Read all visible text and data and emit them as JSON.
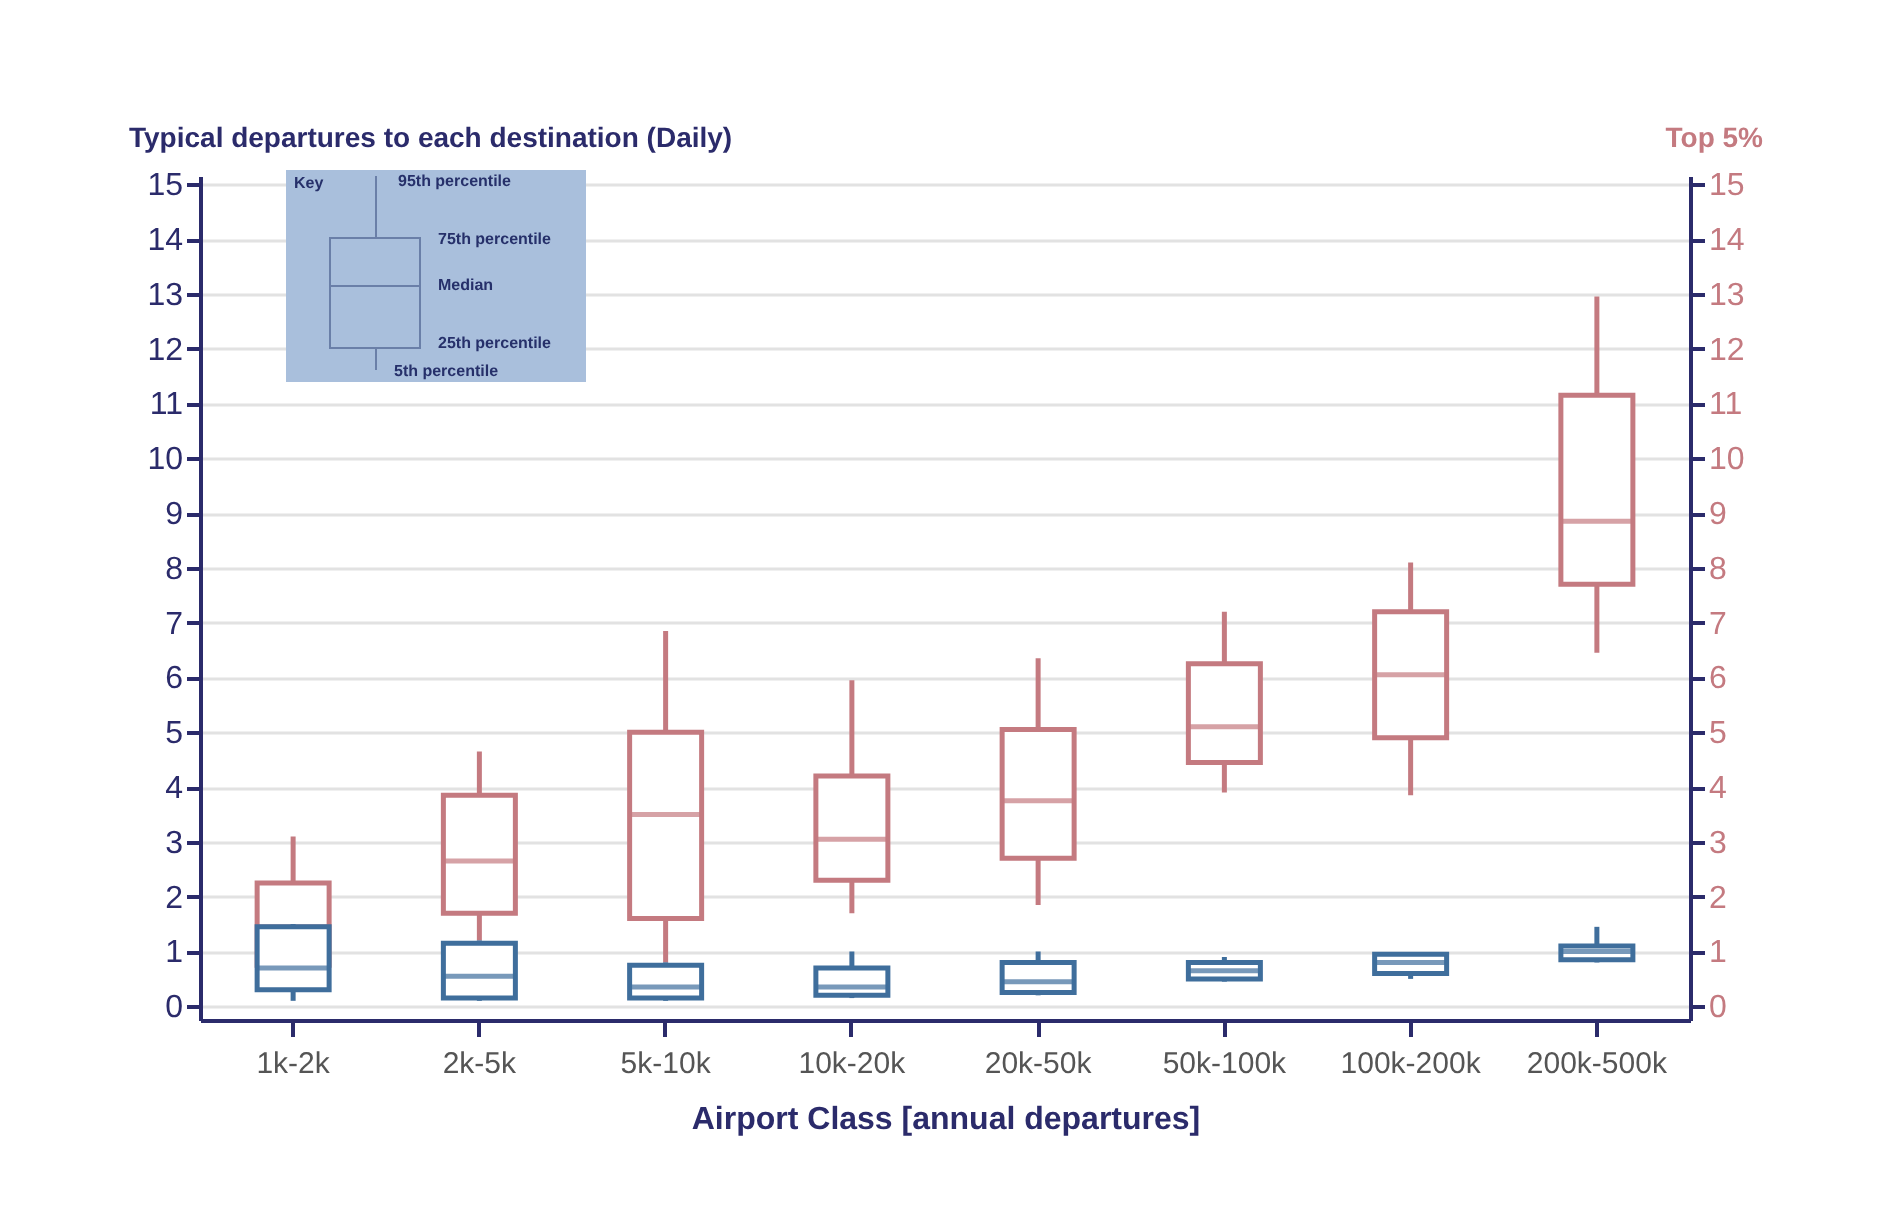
{
  "chart_data": {
    "type": "box",
    "ylabel": "Typical departures to each destination (Daily)",
    "y2label": "Top 5%",
    "xlabel": "Airport Class [annual departures]",
    "categories": [
      "1k-2k",
      "2k-5k",
      "5k-10k",
      "10k-20k",
      "20k-50k",
      "50k-100k",
      "100k-200k",
      "200k-500k"
    ],
    "ylim": [
      -0.25,
      15.15
    ],
    "yticks": [
      0,
      1,
      2,
      3,
      4,
      5,
      6,
      7,
      8,
      9,
      10,
      11,
      12,
      13,
      14,
      15
    ],
    "y2lim": [
      -0.25,
      15.15
    ],
    "y2ticks": [
      0,
      1,
      2,
      3,
      4,
      5,
      6,
      7,
      8,
      9,
      10,
      11,
      12,
      13,
      14,
      15
    ],
    "grid": "y",
    "annotations": [
      "Key",
      "95th percentile",
      "75th percentile",
      "Median",
      "25th percentile",
      "5th percentile"
    ],
    "series": [
      {
        "color": "#c47a80",
        "axis": "y2",
        "boxes": [
          {
            "low": 0.5,
            "q1": 0.75,
            "median": 1.45,
            "q3": 2.25,
            "high": 3.1
          },
          {
            "low": 1.2,
            "q1": 1.7,
            "median": 2.65,
            "q3": 3.85,
            "high": 4.65
          },
          {
            "low": 0.8,
            "q1": 1.6,
            "median": 3.5,
            "q3": 5.0,
            "high": 6.85
          },
          {
            "low": 1.7,
            "q1": 2.3,
            "median": 3.05,
            "q3": 4.2,
            "high": 5.95
          },
          {
            "low": 1.85,
            "q1": 2.7,
            "median": 3.75,
            "q3": 5.05,
            "high": 6.35
          },
          {
            "low": 3.9,
            "q1": 4.45,
            "median": 5.1,
            "q3": 6.25,
            "high": 7.2
          },
          {
            "low": 3.85,
            "q1": 4.9,
            "median": 6.05,
            "q3": 7.2,
            "high": 8.1
          },
          {
            "low": 6.45,
            "q1": 7.7,
            "median": 8.85,
            "q3": 11.15,
            "high": 12.95
          }
        ]
      },
      {
        "color": "#3f6e9c",
        "axis": "y",
        "boxes": [
          {
            "low": 0.1,
            "q1": 0.3,
            "median": 0.7,
            "q3": 1.45,
            "high": 1.5
          },
          {
            "low": 0.1,
            "q1": 0.15,
            "median": 0.55,
            "q3": 1.15,
            "high": 1.2
          },
          {
            "low": 0.1,
            "q1": 0.15,
            "median": 0.35,
            "q3": 0.75,
            "high": 0.8
          },
          {
            "low": 0.15,
            "q1": 0.2,
            "median": 0.35,
            "q3": 0.7,
            "high": 1.0
          },
          {
            "low": 0.2,
            "q1": 0.25,
            "median": 0.45,
            "q3": 0.8,
            "high": 1.0
          },
          {
            "low": 0.45,
            "q1": 0.5,
            "median": 0.65,
            "q3": 0.8,
            "high": 0.9
          },
          {
            "low": 0.5,
            "q1": 0.6,
            "median": 0.8,
            "q3": 0.95,
            "high": 0.95
          },
          {
            "low": 0.8,
            "q1": 0.85,
            "median": 1.0,
            "q3": 1.1,
            "high": 1.45
          }
        ]
      }
    ]
  }
}
